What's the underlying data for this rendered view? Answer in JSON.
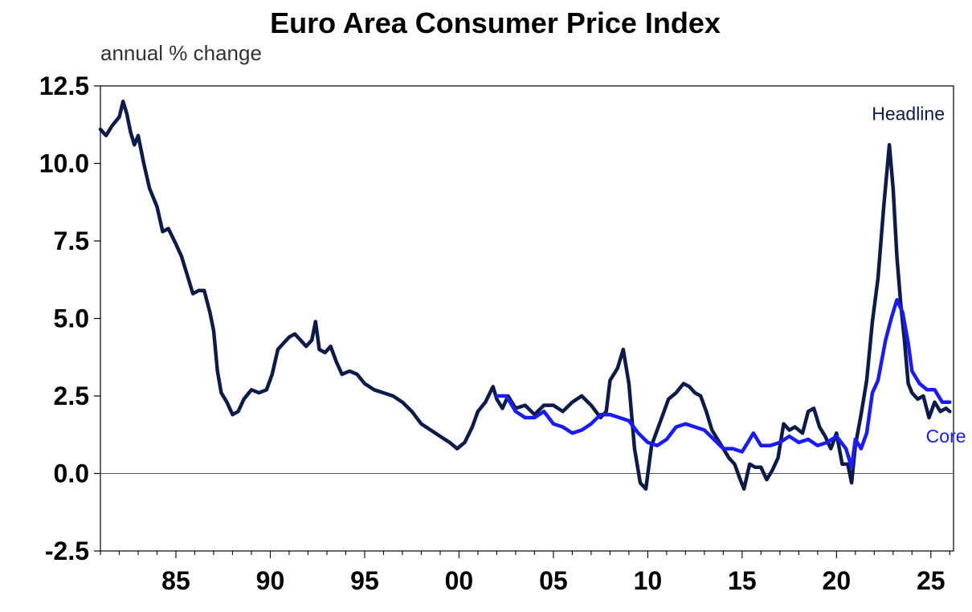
{
  "chart_data": {
    "type": "line",
    "title": "Euro Area Consumer Price Index",
    "subtitle": "annual % change",
    "xlabel": "",
    "ylabel": "",
    "xlim": [
      1981.0,
      2026.2
    ],
    "ylim": [
      -2.5,
      12.5
    ],
    "y_ticks": [
      12.5,
      10.0,
      7.5,
      5.0,
      2.5,
      0.0,
      -2.5
    ],
    "y_tick_labels": [
      "12.5",
      "10.0",
      "7.5",
      "5.0",
      "2.5",
      "0.0",
      "-2.5"
    ],
    "x_ticks": [
      1985,
      1990,
      1995,
      2000,
      2005,
      2010,
      2015,
      2020,
      2025
    ],
    "x_tick_labels": [
      "85",
      "90",
      "95",
      "00",
      "05",
      "10",
      "15",
      "20",
      "25"
    ],
    "zero_line": true,
    "grid": false,
    "series": [
      {
        "name": "Headline",
        "color": "#0d1b4a",
        "points": [
          [
            1981.0,
            11.1
          ],
          [
            1981.3,
            10.9
          ],
          [
            1981.6,
            11.2
          ],
          [
            1982.0,
            11.5
          ],
          [
            1982.2,
            12.0
          ],
          [
            1982.4,
            11.6
          ],
          [
            1982.6,
            11.0
          ],
          [
            1982.8,
            10.6
          ],
          [
            1983.0,
            10.9
          ],
          [
            1983.3,
            10.0
          ],
          [
            1983.6,
            9.2
          ],
          [
            1984.0,
            8.6
          ],
          [
            1984.3,
            7.8
          ],
          [
            1984.6,
            7.9
          ],
          [
            1985.0,
            7.4
          ],
          [
            1985.3,
            7.0
          ],
          [
            1985.6,
            6.4
          ],
          [
            1985.9,
            5.8
          ],
          [
            1986.2,
            5.9
          ],
          [
            1986.5,
            5.9
          ],
          [
            1986.8,
            5.2
          ],
          [
            1987.0,
            4.6
          ],
          [
            1987.2,
            3.3
          ],
          [
            1987.4,
            2.6
          ],
          [
            1987.7,
            2.3
          ],
          [
            1988.0,
            1.9
          ],
          [
            1988.3,
            2.0
          ],
          [
            1988.6,
            2.4
          ],
          [
            1989.0,
            2.7
          ],
          [
            1989.4,
            2.6
          ],
          [
            1989.8,
            2.7
          ],
          [
            1990.1,
            3.2
          ],
          [
            1990.4,
            4.0
          ],
          [
            1990.7,
            4.2
          ],
          [
            1991.0,
            4.4
          ],
          [
            1991.3,
            4.5
          ],
          [
            1991.6,
            4.3
          ],
          [
            1991.9,
            4.1
          ],
          [
            1992.2,
            4.3
          ],
          [
            1992.4,
            4.9
          ],
          [
            1992.6,
            4.0
          ],
          [
            1992.9,
            3.9
          ],
          [
            1993.2,
            4.1
          ],
          [
            1993.5,
            3.6
          ],
          [
            1993.8,
            3.2
          ],
          [
            1994.2,
            3.3
          ],
          [
            1994.6,
            3.2
          ],
          [
            1995.0,
            2.9
          ],
          [
            1995.5,
            2.7
          ],
          [
            1996.0,
            2.6
          ],
          [
            1996.5,
            2.5
          ],
          [
            1997.0,
            2.3
          ],
          [
            1997.5,
            2.0
          ],
          [
            1998.0,
            1.6
          ],
          [
            1998.5,
            1.4
          ],
          [
            1999.0,
            1.2
          ],
          [
            1999.5,
            1.0
          ],
          [
            1999.9,
            0.8
          ],
          [
            2000.3,
            1.0
          ],
          [
            2000.7,
            1.5
          ],
          [
            2001.0,
            2.0
          ],
          [
            2001.4,
            2.3
          ],
          [
            2001.8,
            2.8
          ],
          [
            2002.0,
            2.4
          ],
          [
            2002.3,
            2.1
          ],
          [
            2002.6,
            2.5
          ],
          [
            2003.0,
            2.1
          ],
          [
            2003.5,
            2.2
          ],
          [
            2004.0,
            1.9
          ],
          [
            2004.5,
            2.2
          ],
          [
            2005.0,
            2.2
          ],
          [
            2005.5,
            2.0
          ],
          [
            2006.0,
            2.3
          ],
          [
            2006.5,
            2.5
          ],
          [
            2007.0,
            2.2
          ],
          [
            2007.5,
            1.8
          ],
          [
            2007.8,
            2.0
          ],
          [
            2008.0,
            3.0
          ],
          [
            2008.4,
            3.4
          ],
          [
            2008.7,
            4.0
          ],
          [
            2009.0,
            2.9
          ],
          [
            2009.3,
            0.8
          ],
          [
            2009.6,
            -0.3
          ],
          [
            2009.9,
            -0.5
          ],
          [
            2010.2,
            0.9
          ],
          [
            2010.5,
            1.4
          ],
          [
            2010.8,
            1.9
          ],
          [
            2011.1,
            2.4
          ],
          [
            2011.5,
            2.6
          ],
          [
            2011.9,
            2.9
          ],
          [
            2012.2,
            2.8
          ],
          [
            2012.5,
            2.6
          ],
          [
            2012.8,
            2.5
          ],
          [
            2013.1,
            2.0
          ],
          [
            2013.4,
            1.4
          ],
          [
            2013.7,
            1.1
          ],
          [
            2014.0,
            0.8
          ],
          [
            2014.3,
            0.5
          ],
          [
            2014.6,
            0.3
          ],
          [
            2014.9,
            -0.2
          ],
          [
            2015.1,
            -0.5
          ],
          [
            2015.4,
            0.3
          ],
          [
            2015.7,
            0.2
          ],
          [
            2016.0,
            0.2
          ],
          [
            2016.3,
            -0.2
          ],
          [
            2016.6,
            0.1
          ],
          [
            2016.9,
            0.5
          ],
          [
            2017.2,
            1.6
          ],
          [
            2017.5,
            1.4
          ],
          [
            2017.8,
            1.5
          ],
          [
            2018.2,
            1.3
          ],
          [
            2018.5,
            2.0
          ],
          [
            2018.8,
            2.1
          ],
          [
            2019.1,
            1.5
          ],
          [
            2019.4,
            1.2
          ],
          [
            2019.7,
            0.8
          ],
          [
            2020.0,
            1.3
          ],
          [
            2020.3,
            0.3
          ],
          [
            2020.6,
            0.3
          ],
          [
            2020.8,
            -0.3
          ],
          [
            2021.0,
            0.9
          ],
          [
            2021.3,
            1.9
          ],
          [
            2021.6,
            3.0
          ],
          [
            2021.9,
            4.9
          ],
          [
            2022.2,
            6.3
          ],
          [
            2022.5,
            8.6
          ],
          [
            2022.8,
            10.6
          ],
          [
            2023.0,
            9.2
          ],
          [
            2023.2,
            7.0
          ],
          [
            2023.4,
            5.5
          ],
          [
            2023.6,
            4.3
          ],
          [
            2023.8,
            2.9
          ],
          [
            2024.0,
            2.6
          ],
          [
            2024.3,
            2.4
          ],
          [
            2024.6,
            2.5
          ],
          [
            2024.9,
            1.8
          ],
          [
            2025.2,
            2.3
          ],
          [
            2025.5,
            2.0
          ],
          [
            2025.8,
            2.1
          ],
          [
            2026.0,
            2.0
          ]
        ]
      },
      {
        "name": "Core",
        "color": "#1a1aff",
        "points": [
          [
            2002.0,
            2.5
          ],
          [
            2002.5,
            2.5
          ],
          [
            2003.0,
            2.0
          ],
          [
            2003.5,
            1.8
          ],
          [
            2004.0,
            1.8
          ],
          [
            2004.5,
            2.0
          ],
          [
            2005.0,
            1.6
          ],
          [
            2005.5,
            1.5
          ],
          [
            2006.0,
            1.3
          ],
          [
            2006.5,
            1.4
          ],
          [
            2007.0,
            1.6
          ],
          [
            2007.5,
            1.9
          ],
          [
            2008.0,
            1.9
          ],
          [
            2008.5,
            1.8
          ],
          [
            2009.0,
            1.7
          ],
          [
            2009.5,
            1.3
          ],
          [
            2010.0,
            1.0
          ],
          [
            2010.5,
            0.9
          ],
          [
            2011.0,
            1.1
          ],
          [
            2011.5,
            1.5
          ],
          [
            2012.0,
            1.6
          ],
          [
            2012.5,
            1.5
          ],
          [
            2013.0,
            1.4
          ],
          [
            2013.5,
            1.1
          ],
          [
            2014.0,
            0.8
          ],
          [
            2014.5,
            0.8
          ],
          [
            2015.0,
            0.7
          ],
          [
            2015.3,
            1.0
          ],
          [
            2015.6,
            1.3
          ],
          [
            2016.0,
            0.9
          ],
          [
            2016.5,
            0.9
          ],
          [
            2017.0,
            1.0
          ],
          [
            2017.5,
            1.2
          ],
          [
            2018.0,
            1.0
          ],
          [
            2018.5,
            1.1
          ],
          [
            2019.0,
            0.9
          ],
          [
            2019.5,
            1.0
          ],
          [
            2020.0,
            1.2
          ],
          [
            2020.5,
            0.8
          ],
          [
            2020.8,
            0.2
          ],
          [
            2021.0,
            1.1
          ],
          [
            2021.3,
            0.8
          ],
          [
            2021.6,
            1.3
          ],
          [
            2021.9,
            2.6
          ],
          [
            2022.2,
            3.0
          ],
          [
            2022.6,
            4.3
          ],
          [
            2022.9,
            5.0
          ],
          [
            2023.2,
            5.6
          ],
          [
            2023.5,
            5.2
          ],
          [
            2023.8,
            4.2
          ],
          [
            2024.0,
            3.3
          ],
          [
            2024.4,
            2.9
          ],
          [
            2024.8,
            2.7
          ],
          [
            2025.2,
            2.7
          ],
          [
            2025.6,
            2.3
          ],
          [
            2026.0,
            2.3
          ]
        ]
      }
    ],
    "annotations": [
      {
        "text": "Headline",
        "x": 2023.8,
        "y": 11.4,
        "color": "#0d1b4a"
      },
      {
        "text": "Core",
        "x": 2025.8,
        "y": 1.0,
        "color": "#1a1aff"
      }
    ]
  }
}
